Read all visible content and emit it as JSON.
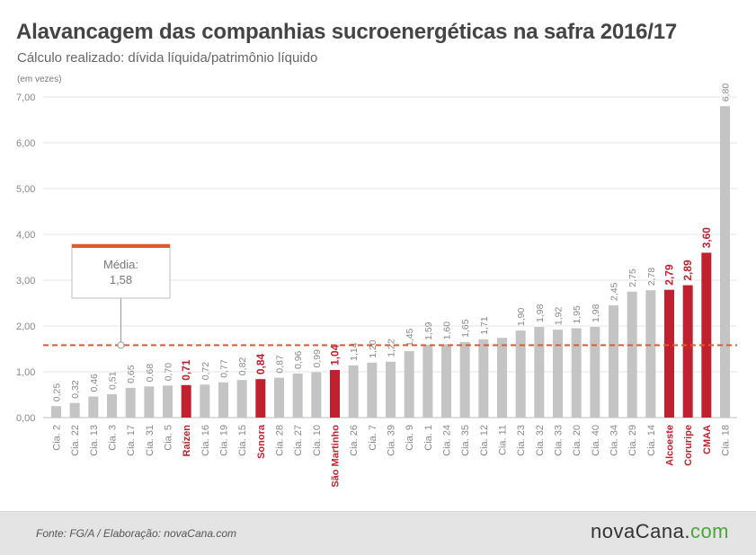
{
  "header": {
    "title": "Alavancagem das companhias sucroenergéticas na safra 2016/17",
    "subtitle": "Cálculo realizado: dívida líquida/patrimônio líquido",
    "unit": "(em vezes)"
  },
  "footer": {
    "source": "Fonte:  FG/A  / Elaboração:  novaCana.com",
    "brand_main": "novaCana.",
    "brand_accent": "com"
  },
  "colors": {
    "bar_default": "#c4c4c4",
    "bar_highlight": "#c0212f",
    "average_line": "#e25a2a",
    "callout_border": "#e25a2a"
  },
  "chart_data": {
    "type": "bar",
    "title": "Alavancagem das companhias sucroenergéticas na safra 2016/17",
    "subtitle": "Cálculo realizado: dívida líquida/patrimônio líquido",
    "ylabel": "(em vezes)",
    "ylim": [
      0,
      7
    ],
    "y_ticks": [
      "0,00",
      "1,00",
      "2,00",
      "3,00",
      "4,00",
      "5,00",
      "6,00",
      "7,00"
    ],
    "grid": true,
    "categories": [
      "Cia. 2",
      "Cia. 22",
      "Cia. 13",
      "Cia. 3",
      "Cia. 17",
      "Cia. 31",
      "Cia. 5",
      "Raízen",
      "Cia. 16",
      "Cia. 19",
      "Cia. 15",
      "Sonora",
      "Cia. 28",
      "Cia. 27",
      "Cia. 10",
      "São Martinho",
      "Cia. 26",
      "Cia. 7",
      "Cia. 39",
      "Cia. 9",
      "Cia. 1",
      "Cia. 24",
      "Cia. 35",
      "Cia. 12",
      "Cia. 11",
      "Cia. 23",
      "Cia. 32",
      "Cia. 33",
      "Cia. 20",
      "Cia. 40",
      "Cia. 34",
      "Cia. 29",
      "Cia. 14",
      "Alcoeste",
      "Coruripe",
      "CMAA",
      "Cia. 18"
    ],
    "values": [
      0.25,
      0.32,
      0.46,
      0.51,
      0.65,
      0.68,
      0.7,
      0.71,
      0.72,
      0.77,
      0.82,
      0.84,
      0.87,
      0.96,
      0.99,
      1.04,
      1.14,
      1.2,
      1.22,
      1.45,
      1.59,
      1.6,
      1.65,
      1.71,
      1.74,
      1.9,
      1.98,
      1.92,
      1.95,
      1.98,
      2.45,
      2.75,
      2.78,
      2.79,
      2.89,
      3.6,
      6.8
    ],
    "value_labels": [
      "0,25",
      "0,32",
      "0,46",
      "0,51",
      "0,65",
      "0,68",
      "0,70",
      "0,71",
      "0,72",
      "0,77",
      "0,82",
      "0,84",
      "0,87",
      "0,96",
      "0,99",
      "1,04",
      "1,14",
      "1,20",
      "1,22",
      "1,45",
      "1,59",
      "1,60",
      "1,65",
      "1,71",
      "",
      "1,90",
      "1,98",
      "1,92",
      "1,95",
      "1,98",
      "2,45",
      "2,75",
      "2,78",
      "2,79",
      "2,89",
      "3,60",
      "6,80"
    ],
    "highlighted": [
      "Raízen",
      "Sonora",
      "São Martinho",
      "Alcoeste",
      "Coruripe",
      "CMAA"
    ],
    "average": {
      "label": "Média:",
      "value_label": "1,58",
      "value": 1.58
    }
  }
}
